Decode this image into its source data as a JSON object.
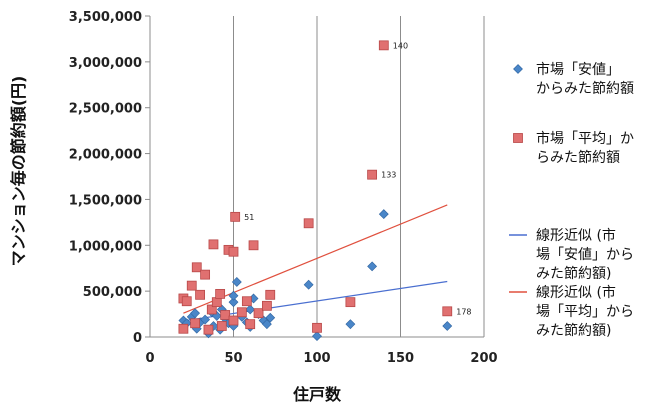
{
  "chart_data": {
    "type": "scatter",
    "xlabel": "住戸数",
    "ylabel": "マンション毎の節約額(円)",
    "xlim": [
      0,
      200
    ],
    "ylim": [
      0,
      3500000
    ],
    "x_ticks": [
      "0",
      "50",
      "100",
      "150",
      "200"
    ],
    "y_ticks": [
      "0",
      "500,000",
      "1,000,000",
      "1,500,000",
      "2,000,000",
      "2,500,000",
      "3,000,000",
      "3,500,000"
    ],
    "grid": "vertical",
    "legend_position": "right",
    "series": [
      {
        "name": "市場「安値」からみた節約額",
        "marker": "diamond",
        "color": "#4a86c8",
        "points": [
          [
            20,
            100000
          ],
          [
            20,
            180000
          ],
          [
            22,
            150000
          ],
          [
            25,
            220000
          ],
          [
            27,
            260000
          ],
          [
            28,
            90000
          ],
          [
            30,
            160000
          ],
          [
            33,
            190000
          ],
          [
            35,
            40000
          ],
          [
            37,
            270000
          ],
          [
            38,
            120000
          ],
          [
            40,
            230000
          ],
          [
            42,
            80000
          ],
          [
            43,
            300000
          ],
          [
            45,
            200000
          ],
          [
            47,
            150000
          ],
          [
            50,
            120000
          ],
          [
            50,
            380000
          ],
          [
            50,
            450000
          ],
          [
            52,
            600000
          ],
          [
            55,
            220000
          ],
          [
            58,
            160000
          ],
          [
            60,
            110000
          ],
          [
            60,
            300000
          ],
          [
            62,
            420000
          ],
          [
            65,
            250000
          ],
          [
            68,
            180000
          ],
          [
            70,
            140000
          ],
          [
            72,
            210000
          ],
          [
            95,
            570000
          ],
          [
            100,
            10000
          ],
          [
            120,
            140000
          ],
          [
            133,
            770000
          ],
          [
            140,
            1340000
          ],
          [
            178,
            120000
          ]
        ]
      },
      {
        "name": "市場「平均」からみた節約額",
        "marker": "square",
        "color": "#e07070",
        "points": [
          [
            20,
            420000
          ],
          [
            20,
            90000
          ],
          [
            22,
            390000
          ],
          [
            25,
            560000
          ],
          [
            27,
            150000
          ],
          [
            28,
            760000
          ],
          [
            30,
            460000
          ],
          [
            33,
            680000
          ],
          [
            35,
            80000
          ],
          [
            37,
            300000
          ],
          [
            38,
            1010000
          ],
          [
            40,
            380000
          ],
          [
            42,
            470000
          ],
          [
            43,
            120000
          ],
          [
            45,
            240000
          ],
          [
            47,
            950000
          ],
          [
            50,
            180000
          ],
          [
            50,
            930000
          ],
          [
            51,
            1310000
          ],
          [
            55,
            270000
          ],
          [
            58,
            390000
          ],
          [
            60,
            140000
          ],
          [
            62,
            1000000
          ],
          [
            65,
            260000
          ],
          [
            70,
            340000
          ],
          [
            72,
            460000
          ],
          [
            95,
            1240000
          ],
          [
            100,
            100000
          ],
          [
            120,
            380000
          ],
          [
            133,
            1770000
          ],
          [
            140,
            3180000
          ],
          [
            178,
            280000
          ]
        ]
      },
      {
        "name": "線形近似 (市場「安値」からみた節約額)",
        "type": "line",
        "color": "#4a6fd0",
        "points": [
          [
            20,
            175000
          ],
          [
            178,
            605000
          ]
        ]
      },
      {
        "name": "線形近似 (市場「平均」からみた節約額)",
        "type": "line",
        "color": "#e0503e",
        "points": [
          [
            20,
            260000
          ],
          [
            178,
            1440000
          ]
        ]
      }
    ],
    "annotations": [
      {
        "text": "140",
        "x": 140,
        "y": 3180000
      },
      {
        "text": "133",
        "x": 133,
        "y": 1770000
      },
      {
        "text": "51",
        "x": 51,
        "y": 1310000
      },
      {
        "text": "178",
        "x": 178,
        "y": 280000
      }
    ],
    "legend": [
      {
        "label_lines": [
          "市場「安値」",
          "からみた節約額"
        ],
        "symbol": "diamond",
        "color": "#4a86c8"
      },
      {
        "label_lines": [
          "市場「平均」か",
          "らみた節約額"
        ],
        "symbol": "square",
        "color": "#e07070"
      },
      {
        "label_lines": [
          "線形近似 (市",
          "場「安値」から",
          "みた節約額)"
        ],
        "symbol": "line",
        "color": "#4a6fd0"
      },
      {
        "label_lines": [
          "線形近似 (市",
          "場「平均」から",
          "みた節約額)"
        ],
        "symbol": "line",
        "color": "#e0503e"
      }
    ]
  }
}
